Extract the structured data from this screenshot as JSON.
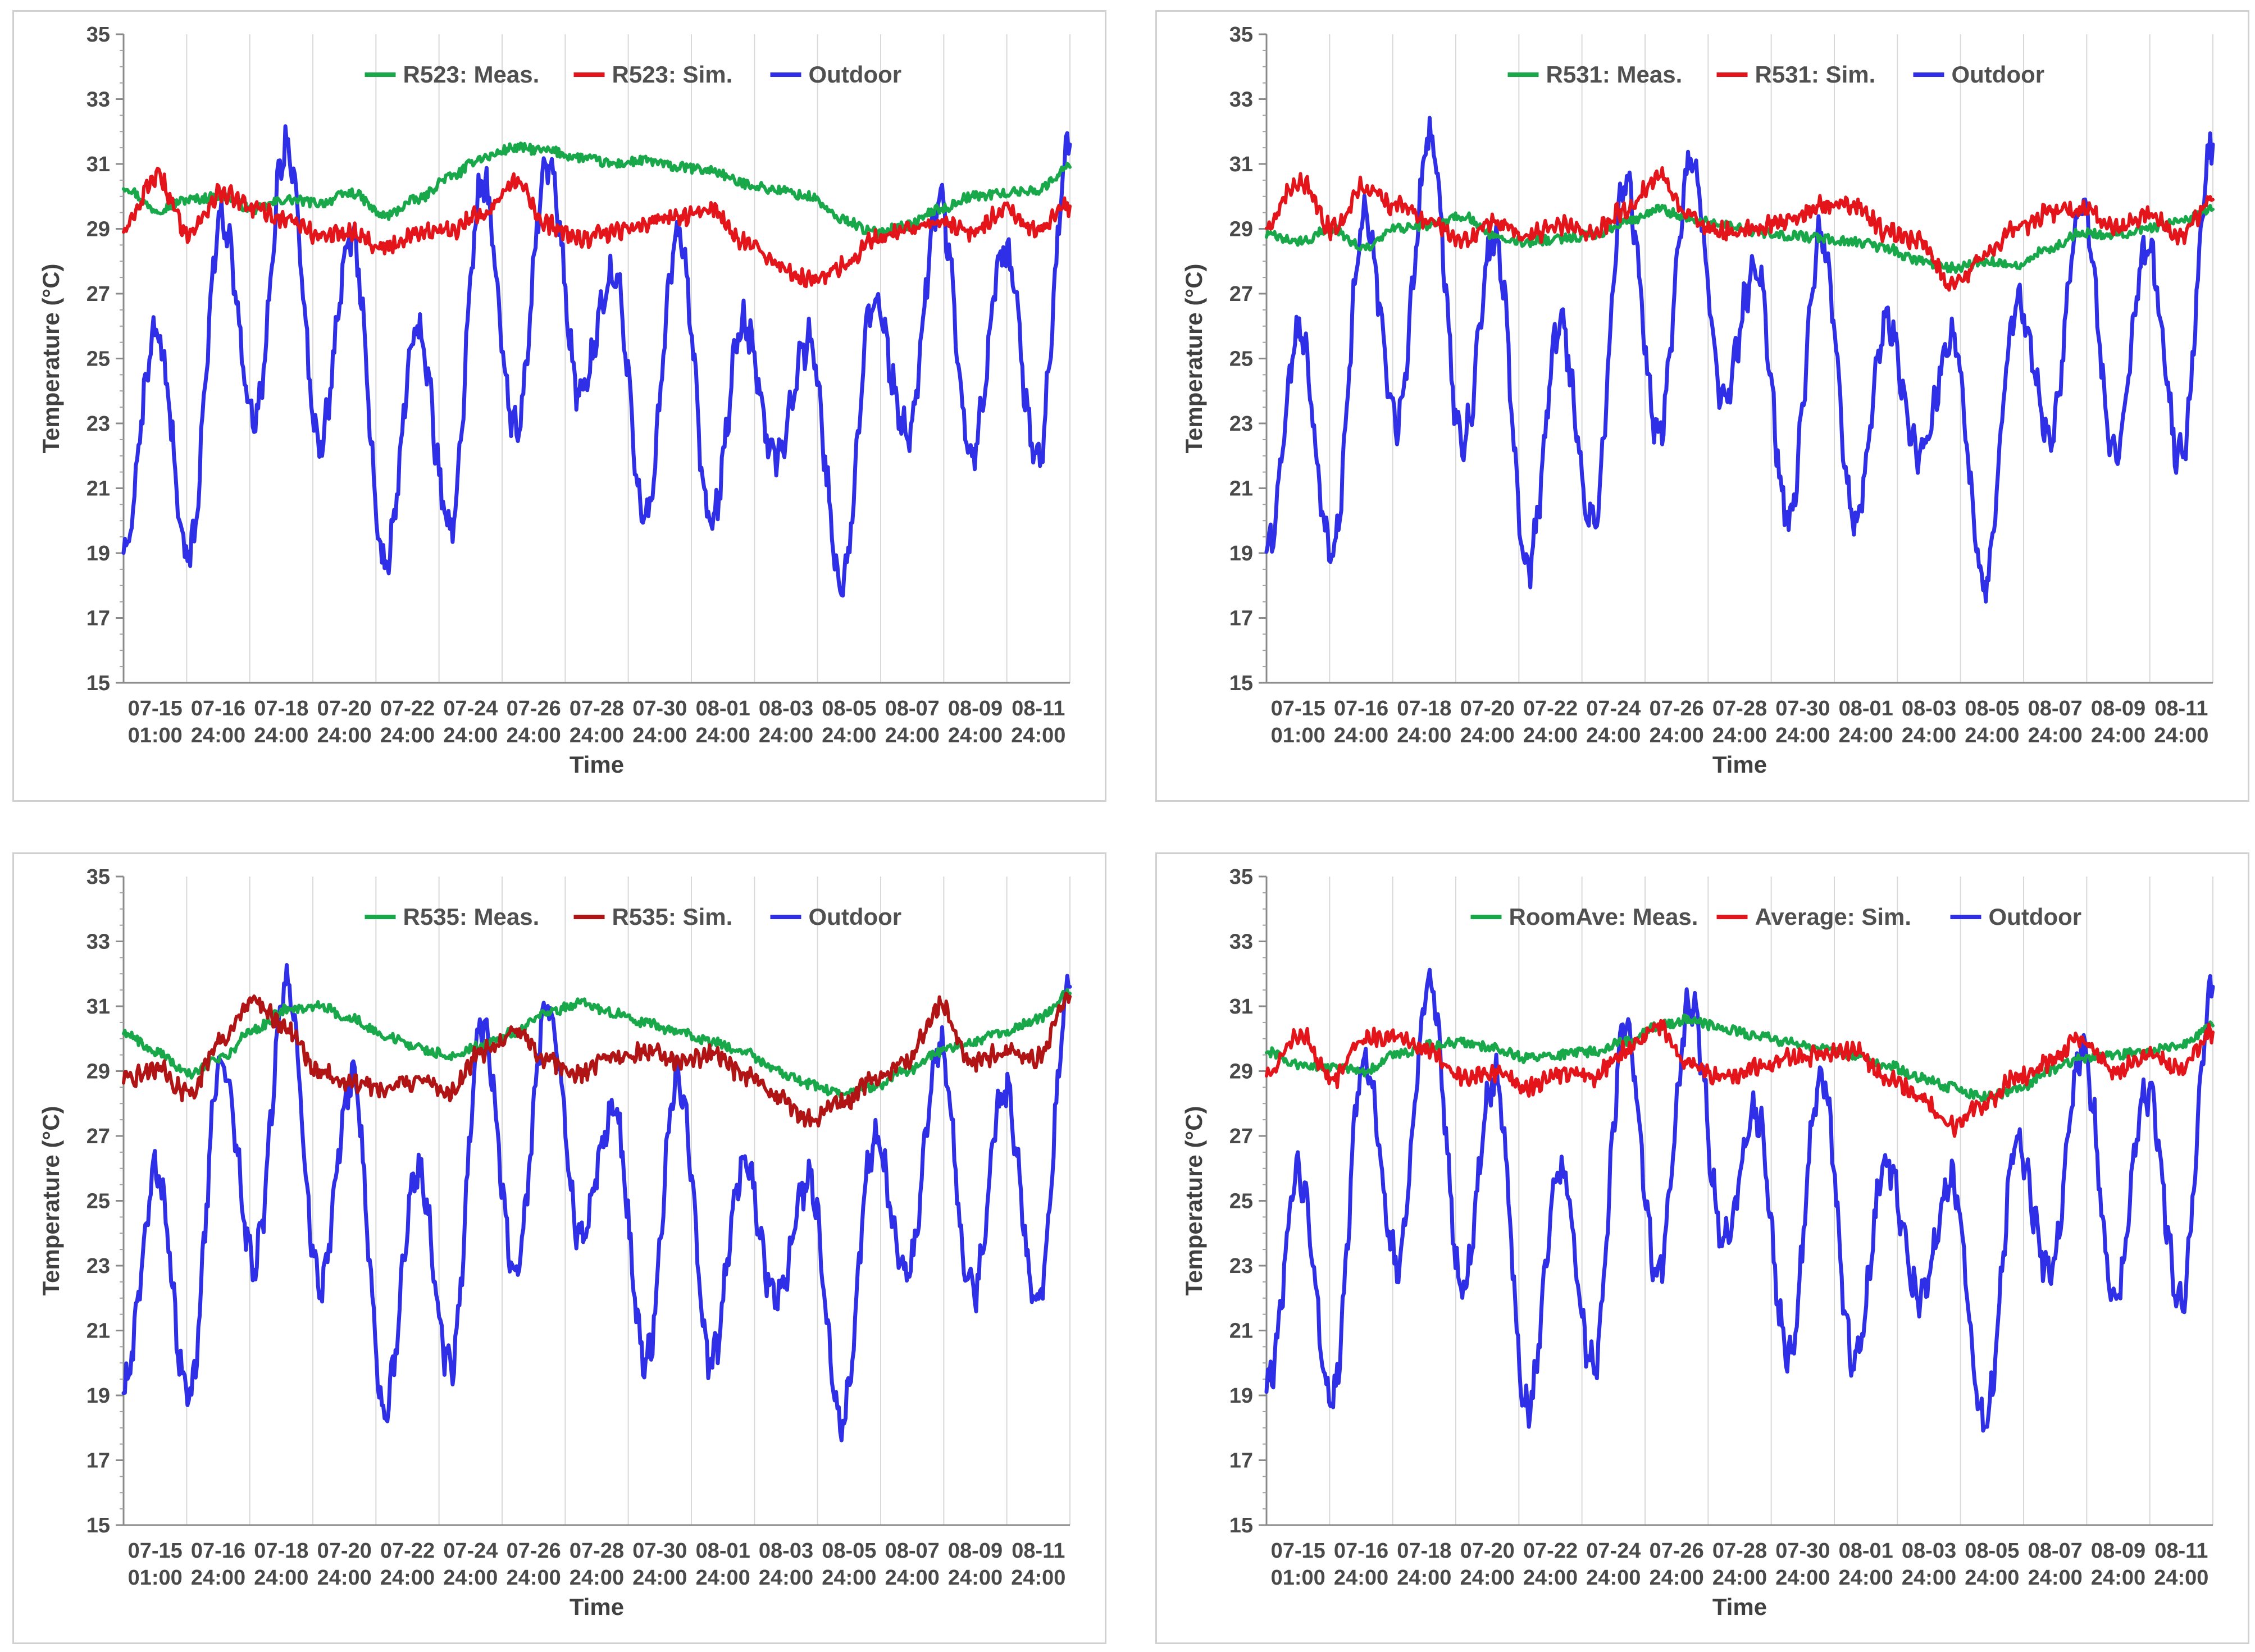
{
  "colors": {
    "meas": "#18a84a",
    "sim_red": "#e4141b",
    "sim_dark": "#b01414",
    "outdoor": "#2f2fe8"
  },
  "chart_data": [
    {
      "type": "line",
      "title": "",
      "xlabel": "Time",
      "ylabel": "Temperature (°C)",
      "ylim": [
        15,
        35
      ],
      "yticks": [
        "15",
        "17",
        "19",
        "21",
        "23",
        "25",
        "27",
        "29",
        "31",
        "33",
        "35"
      ],
      "xticks": [
        {
          "top": "07-15",
          "bottom": "01:00"
        },
        {
          "top": "07-16",
          "bottom": "24:00"
        },
        {
          "top": "07-18",
          "bottom": "24:00"
        },
        {
          "top": "07-20",
          "bottom": "24:00"
        },
        {
          "top": "07-22",
          "bottom": "24:00"
        },
        {
          "top": "07-24",
          "bottom": "24:00"
        },
        {
          "top": "07-26",
          "bottom": "24:00"
        },
        {
          "top": "07-28",
          "bottom": "24:00"
        },
        {
          "top": "07-30",
          "bottom": "24:00"
        },
        {
          "top": "08-01",
          "bottom": "24:00"
        },
        {
          "top": "08-03",
          "bottom": "24:00"
        },
        {
          "top": "08-05",
          "bottom": "24:00"
        },
        {
          "top": "08-07",
          "bottom": "24:00"
        },
        {
          "top": "08-09",
          "bottom": "24:00"
        },
        {
          "top": "08-11",
          "bottom": "24:00"
        }
      ],
      "x": [
        0,
        1,
        2,
        3,
        4,
        5,
        6,
        7,
        8,
        9,
        10,
        11,
        12,
        13,
        14,
        15,
        16,
        17,
        18,
        19,
        20,
        21,
        22,
        23,
        24,
        25,
        26,
        27,
        28,
        29
      ],
      "series": [
        {
          "name": "R523: Meas.",
          "color": "#18a84a",
          "values": [
            30.3,
            29.6,
            29.9,
            30.0,
            29.6,
            29.9,
            29.8,
            30.1,
            29.4,
            29.9,
            30.6,
            31.2,
            31.5,
            31.4,
            31.2,
            31.0,
            31.1,
            30.9,
            30.8,
            30.4,
            30.2,
            30.0,
            29.3,
            28.9,
            29.1,
            29.6,
            30.0,
            30.1,
            30.2,
            30.9
          ]
        },
        {
          "name": "R523: Sim.",
          "color": "#e4141b",
          "values": [
            29.0,
            30.6,
            28.9,
            30.1,
            29.6,
            29.3,
            28.8,
            28.9,
            28.4,
            28.9,
            28.9,
            29.5,
            30.4,
            29.1,
            28.7,
            28.9,
            29.2,
            29.4,
            29.6,
            28.6,
            27.9,
            27.4,
            27.8,
            28.7,
            29.0,
            29.2,
            28.9,
            29.6,
            29.0,
            29.7
          ]
        },
        {
          "name": "Outdoor",
          "color": "#2f2fe8",
          "values": [
            19.2,
            25.8,
            18.9,
            29.4,
            23.1,
            31.7,
            22.4,
            28.8,
            18.6,
            25.9,
            19.9,
            30.4,
            22.8,
            31.1,
            23.9,
            27.7,
            20.1,
            28.9,
            20.0,
            26.1,
            22.0,
            25.6,
            18.1,
            26.8,
            22.7,
            29.7,
            22.1,
            28.4,
            21.9,
            31.6
          ]
        }
      ],
      "legend_placement": "top-center"
    },
    {
      "type": "line",
      "title": "",
      "xlabel": "Time",
      "ylabel": "Temperature (°C)",
      "ylim": [
        15,
        35
      ],
      "yticks": [
        "15",
        "17",
        "19",
        "21",
        "23",
        "25",
        "27",
        "29",
        "31",
        "33",
        "35"
      ],
      "xticks": [
        {
          "top": "07-15",
          "bottom": "01:00"
        },
        {
          "top": "07-16",
          "bottom": "24:00"
        },
        {
          "top": "07-18",
          "bottom": "24:00"
        },
        {
          "top": "07-20",
          "bottom": "24:00"
        },
        {
          "top": "07-22",
          "bottom": "24:00"
        },
        {
          "top": "07-24",
          "bottom": "24:00"
        },
        {
          "top": "07-26",
          "bottom": "24:00"
        },
        {
          "top": "07-28",
          "bottom": "24:00"
        },
        {
          "top": "07-30",
          "bottom": "24:00"
        },
        {
          "top": "08-01",
          "bottom": "24:00"
        },
        {
          "top": "08-03",
          "bottom": "24:00"
        },
        {
          "top": "08-05",
          "bottom": "24:00"
        },
        {
          "top": "08-07",
          "bottom": "24:00"
        },
        {
          "top": "08-09",
          "bottom": "24:00"
        },
        {
          "top": "08-11",
          "bottom": "24:00"
        }
      ],
      "x": [
        0,
        1,
        2,
        3,
        4,
        5,
        6,
        7,
        8,
        9,
        10,
        11,
        12,
        13,
        14,
        15,
        16,
        17,
        18,
        19,
        20,
        21,
        22,
        23,
        24,
        25,
        26,
        27,
        28,
        29
      ],
      "series": [
        {
          "name": "R531: Meas.",
          "color": "#18a84a",
          "values": [
            28.8,
            28.6,
            29.0,
            28.4,
            29.0,
            29.1,
            29.4,
            28.8,
            28.6,
            28.7,
            28.8,
            29.2,
            29.6,
            29.3,
            29.1,
            28.9,
            28.8,
            28.7,
            28.6,
            28.4,
            28.0,
            27.8,
            28.0,
            27.9,
            28.4,
            28.9,
            28.8,
            29.0,
            29.2,
            29.6
          ]
        },
        {
          "name": "R531: Sim.",
          "color": "#e4141b",
          "values": [
            29.1,
            30.5,
            29.0,
            30.3,
            29.7,
            29.3,
            28.6,
            29.2,
            28.8,
            29.1,
            28.9,
            29.6,
            30.6,
            29.3,
            28.9,
            29.0,
            29.3,
            29.7,
            29.8,
            28.9,
            28.6,
            27.2,
            28.2,
            29.0,
            29.5,
            29.6,
            29.0,
            29.4,
            28.8,
            29.9
          ]
        },
        {
          "name": "Outdoor",
          "color": "#2f2fe8",
          "values": [
            19.2,
            25.8,
            18.9,
            29.4,
            23.1,
            31.7,
            22.4,
            28.8,
            18.6,
            25.9,
            19.9,
            30.4,
            22.8,
            31.1,
            23.9,
            27.7,
            20.1,
            28.9,
            20.0,
            26.1,
            22.0,
            25.6,
            18.1,
            26.8,
            22.7,
            29.7,
            22.1,
            28.4,
            21.9,
            31.6
          ]
        }
      ],
      "legend_placement": "top-center"
    },
    {
      "type": "line",
      "title": "",
      "xlabel": "Time",
      "ylabel": "Temperature (°C)",
      "ylim": [
        15,
        35
      ],
      "yticks": [
        "15",
        "17",
        "19",
        "21",
        "23",
        "25",
        "27",
        "29",
        "31",
        "33",
        "35"
      ],
      "xticks": [
        {
          "top": "07-15",
          "bottom": "01:00"
        },
        {
          "top": "07-16",
          "bottom": "24:00"
        },
        {
          "top": "07-18",
          "bottom": "24:00"
        },
        {
          "top": "07-20",
          "bottom": "24:00"
        },
        {
          "top": "07-22",
          "bottom": "24:00"
        },
        {
          "top": "07-24",
          "bottom": "24:00"
        },
        {
          "top": "07-26",
          "bottom": "24:00"
        },
        {
          "top": "07-28",
          "bottom": "24:00"
        },
        {
          "top": "07-30",
          "bottom": "24:00"
        },
        {
          "top": "08-01",
          "bottom": "24:00"
        },
        {
          "top": "08-03",
          "bottom": "24:00"
        },
        {
          "top": "08-05",
          "bottom": "24:00"
        },
        {
          "top": "08-07",
          "bottom": "24:00"
        },
        {
          "top": "08-09",
          "bottom": "24:00"
        },
        {
          "top": "08-11",
          "bottom": "24:00"
        }
      ],
      "x": [
        0,
        1,
        2,
        3,
        4,
        5,
        6,
        7,
        8,
        9,
        10,
        11,
        12,
        13,
        14,
        15,
        16,
        17,
        18,
        19,
        20,
        21,
        22,
        23,
        24,
        25,
        26,
        27,
        28,
        29
      ],
      "series": [
        {
          "name": "R535: Meas.",
          "color": "#18a84a",
          "values": [
            30.2,
            29.6,
            28.9,
            29.4,
            30.3,
            30.9,
            31.0,
            30.6,
            30.1,
            29.7,
            29.5,
            29.8,
            30.2,
            30.8,
            31.1,
            30.8,
            30.5,
            30.2,
            29.9,
            29.6,
            29.0,
            28.6,
            28.3,
            28.5,
            29.0,
            29.6,
            29.9,
            30.2,
            30.6,
            31.4
          ]
        },
        {
          "name": "R535: Sim.",
          "color": "#b01414",
          "values": [
            28.7,
            29.1,
            28.3,
            30.0,
            31.2,
            30.3,
            29.0,
            28.6,
            28.5,
            28.7,
            28.4,
            29.6,
            30.2,
            29.3,
            28.9,
            29.4,
            29.6,
            29.3,
            29.5,
            28.9,
            28.2,
            27.5,
            28.0,
            28.7,
            29.3,
            31.0,
            29.3,
            29.6,
            29.4,
            31.3
          ]
        },
        {
          "name": "Outdoor",
          "color": "#2f2fe8",
          "values": [
            19.2,
            25.8,
            18.9,
            29.4,
            23.1,
            31.7,
            22.4,
            28.8,
            18.6,
            25.9,
            19.9,
            30.4,
            22.8,
            31.1,
            23.9,
            27.7,
            20.1,
            28.9,
            20.0,
            26.1,
            22.0,
            25.6,
            18.1,
            26.8,
            22.7,
            29.7,
            22.1,
            28.4,
            21.9,
            31.6
          ]
        }
      ],
      "legend_placement": "top-center"
    },
    {
      "type": "line",
      "title": "",
      "xlabel": "Time",
      "ylabel": "Temperature (°C)",
      "ylim": [
        15,
        35
      ],
      "yticks": [
        "15",
        "17",
        "19",
        "21",
        "23",
        "25",
        "27",
        "29",
        "31",
        "33",
        "35"
      ],
      "xticks": [
        {
          "top": "07-15",
          "bottom": "01:00"
        },
        {
          "top": "07-16",
          "bottom": "24:00"
        },
        {
          "top": "07-18",
          "bottom": "24:00"
        },
        {
          "top": "07-20",
          "bottom": "24:00"
        },
        {
          "top": "07-22",
          "bottom": "24:00"
        },
        {
          "top": "07-24",
          "bottom": "24:00"
        },
        {
          "top": "07-26",
          "bottom": "24:00"
        },
        {
          "top": "07-28",
          "bottom": "24:00"
        },
        {
          "top": "07-30",
          "bottom": "24:00"
        },
        {
          "top": "08-01",
          "bottom": "24:00"
        },
        {
          "top": "08-03",
          "bottom": "24:00"
        },
        {
          "top": "08-05",
          "bottom": "24:00"
        },
        {
          "top": "08-07",
          "bottom": "24:00"
        },
        {
          "top": "08-09",
          "bottom": "24:00"
        },
        {
          "top": "08-11",
          "bottom": "24:00"
        }
      ],
      "x": [
        0,
        1,
        2,
        3,
        4,
        5,
        6,
        7,
        8,
        9,
        10,
        11,
        12,
        13,
        14,
        15,
        16,
        17,
        18,
        19,
        20,
        21,
        22,
        23,
        24,
        25,
        26,
        27,
        28,
        29
      ],
      "series": [
        {
          "name": "RoomAve: Meas.",
          "color": "#18a84a",
          "values": [
            29.6,
            29.2,
            29.1,
            29.0,
            29.5,
            29.8,
            29.9,
            29.7,
            29.4,
            29.5,
            29.6,
            29.9,
            30.4,
            30.6,
            30.3,
            30.1,
            29.9,
            29.7,
            29.5,
            29.2,
            28.8,
            28.5,
            28.2,
            28.4,
            29.0,
            29.4,
            29.5,
            29.6,
            29.8,
            30.4
          ]
        },
        {
          "name": "Average: Sim.",
          "color": "#e4141b",
          "values": [
            28.9,
            30.2,
            28.7,
            30.0,
            30.1,
            29.6,
            28.8,
            28.9,
            28.5,
            28.9,
            28.8,
            29.6,
            30.4,
            29.2,
            28.8,
            29.1,
            29.4,
            29.5,
            29.6,
            28.8,
            28.2,
            27.3,
            28.0,
            28.8,
            29.3,
            30.0,
            29.0,
            29.5,
            29.0,
            30.2
          ]
        },
        {
          "name": "Outdoor",
          "color": "#2f2fe8",
          "values": [
            19.2,
            25.8,
            18.9,
            29.4,
            23.1,
            31.7,
            22.4,
            28.8,
            18.6,
            25.9,
            19.9,
            30.4,
            22.8,
            31.1,
            23.9,
            27.7,
            20.1,
            28.9,
            20.0,
            26.1,
            22.0,
            25.6,
            18.1,
            26.8,
            22.7,
            29.7,
            22.1,
            28.4,
            21.9,
            31.6
          ]
        }
      ],
      "legend_placement": "top-center"
    }
  ]
}
